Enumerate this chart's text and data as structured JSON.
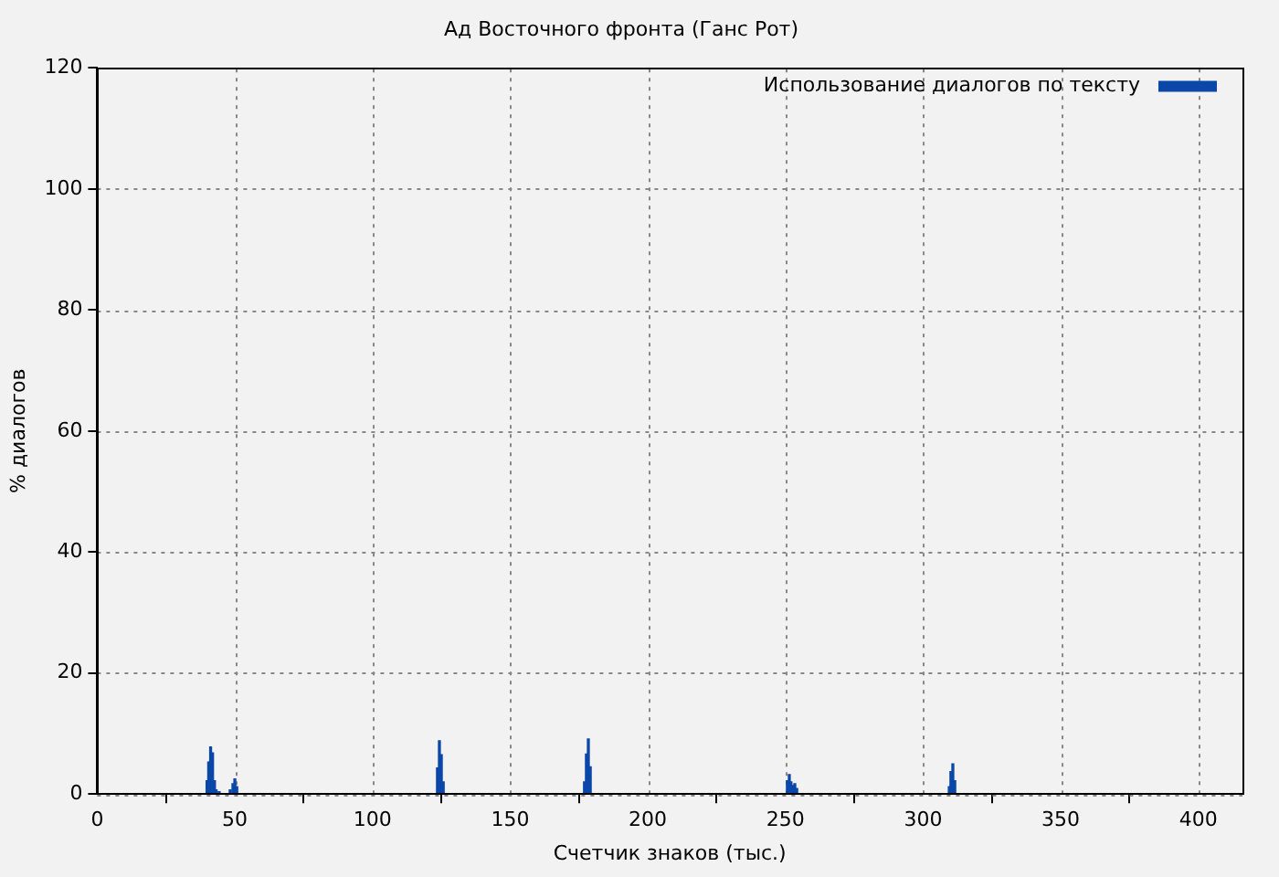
{
  "chart_data": {
    "type": "bar",
    "title": "Ад Восточного фронта (Ганс Рот)",
    "xlabel": "Счетчик знаков (тыс.)",
    "ylabel": "% диалогов",
    "x": [
      39.9,
      40.5,
      41.2,
      41.9,
      42.6,
      43.2,
      44.3,
      48.3,
      49.3,
      50,
      50.7,
      123.6,
      124.3,
      125,
      125.7,
      177,
      177.7,
      178.4,
      179.1,
      250.7,
      251.4,
      252,
      252.7,
      253.4,
      254.1,
      309.5,
      310.1,
      310.8,
      311.5
    ],
    "series": [
      {
        "name": "Использование диалогов по тексту",
        "color": "#0a47a9",
        "values": [
          2.2,
          5.3,
          7.8,
          6.8,
          2.2,
          0.7,
          0.4,
          0.7,
          1.7,
          2.5,
          1.2,
          4.3,
          8.8,
          6.5,
          2,
          2,
          6.6,
          9.1,
          4.5,
          2.2,
          3.2,
          2,
          1.4,
          1.7,
          0.9,
          1.2,
          3.7,
          5,
          2.2
        ]
      }
    ],
    "xlim": [
      0,
      416
    ],
    "xticks": [
      0,
      50,
      100,
      150,
      200,
      250,
      300,
      350,
      400
    ],
    "ylim": [
      0,
      120
    ],
    "yticks": [
      0,
      20,
      40,
      60,
      80,
      100,
      120
    ],
    "grid": true,
    "line_style": "dotted",
    "legend": "top right"
  }
}
